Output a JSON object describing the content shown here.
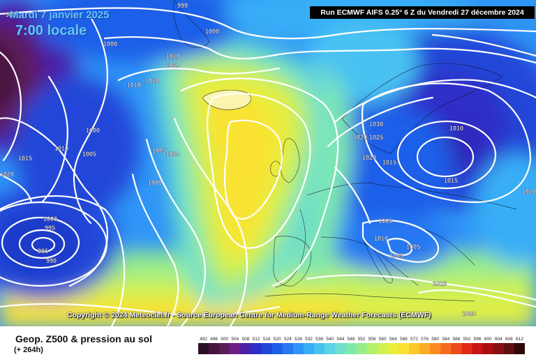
{
  "header": {
    "date": "Mardi 7 janvier 2025",
    "time": "7:00 locale",
    "run_info": "Run ECMWF AIFS 0.25° 6 Z du Vendredi 27 décembre 2024"
  },
  "copyright": "Copyright © 2024 Meteociel.fr - Source European Centre for Medium-Range Weather Forecasts (ECMWF)",
  "footer": {
    "title": "Geop. Z500 & pression au sol",
    "subtitle": "(+ 264h)"
  },
  "legend": {
    "ticks": [
      "492",
      "496",
      "500",
      "504",
      "508",
      "512",
      "516",
      "520",
      "524",
      "528",
      "532",
      "536",
      "540",
      "544",
      "548",
      "552",
      "556",
      "560",
      "564",
      "568",
      "572",
      "576",
      "580",
      "584",
      "588",
      "592",
      "596",
      "600",
      "604",
      "608",
      "612"
    ],
    "colors": [
      "#2b0f24",
      "#46143e",
      "#5e1b5c",
      "#6f1f88",
      "#4a1fa8",
      "#2d2ec8",
      "#2046d8",
      "#1f5ee8",
      "#2878f2",
      "#2f95f6",
      "#38aef6",
      "#48c2f2",
      "#5cd3e6",
      "#6ee0cc",
      "#80e8ae",
      "#98ec8c",
      "#b4ee6c",
      "#cff052",
      "#e8ee3c",
      "#fae232",
      "#fcc82c",
      "#fcac26",
      "#fa8c22",
      "#f46a1e",
      "#ec4a1a",
      "#e02a16",
      "#c81414",
      "#a80e14",
      "#881014",
      "#601010",
      "#300808"
    ]
  },
  "pressure_labels": [
    {
      "text": "985"
    },
    {
      "text": "999"
    },
    {
      "text": "1000"
    },
    {
      "text": "1000"
    },
    {
      "text": "1010"
    },
    {
      "text": "1010"
    },
    {
      "text": "1010"
    },
    {
      "text": "1010"
    },
    {
      "text": "1000"
    },
    {
      "text": "1010"
    },
    {
      "text": "1005"
    },
    {
      "text": "1015"
    },
    {
      "text": "1020"
    },
    {
      "text": "1005"
    },
    {
      "text": "1010"
    },
    {
      "text": "1000"
    },
    {
      "text": "1000"
    },
    {
      "text": "995"
    },
    {
      "text": "985"
    },
    {
      "text": "990"
    },
    {
      "text": "1030"
    },
    {
      "text": "1025"
    },
    {
      "text": "1020"
    },
    {
      "text": "1015"
    },
    {
      "text": "1010"
    },
    {
      "text": "1005"
    },
    {
      "text": "1010"
    },
    {
      "text": "1015"
    },
    {
      "text": "1010"
    },
    {
      "text": "1005"
    },
    {
      "text": "1005"
    },
    {
      "text": "1015"
    },
    {
      "text": "1020"
    },
    {
      "text": "1015"
    },
    {
      "text": "1020"
    }
  ]
}
